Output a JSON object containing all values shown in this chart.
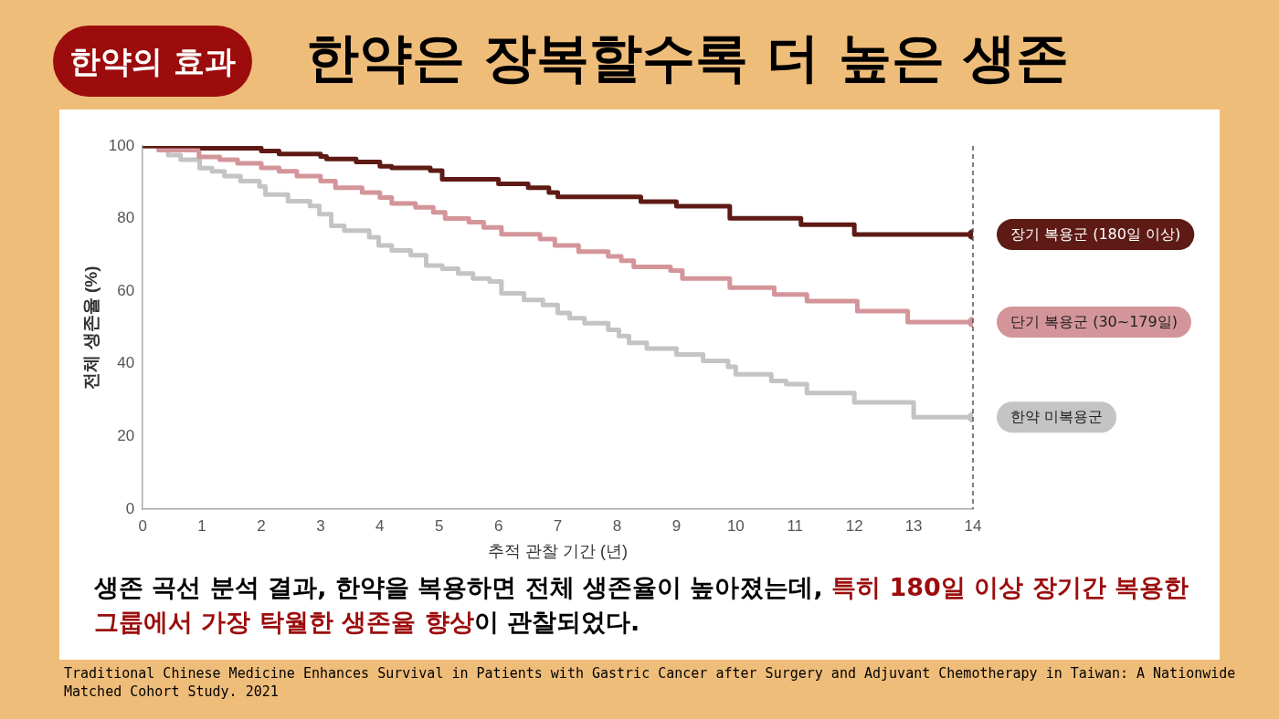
{
  "chart_data": {
    "type": "step",
    "title": "한약은 장복할수록 더 높은 생존",
    "subtitle": "한약의 효과",
    "xlabel": "추적 관찰 기간 (년)",
    "ylabel": "전체 생존율 (%)",
    "xlim": [
      0,
      14
    ],
    "xticks": [
      0,
      1,
      2,
      3,
      4,
      5,
      6,
      7,
      8,
      9,
      10,
      11,
      12,
      13,
      14
    ],
    "ylim": [
      0,
      100
    ],
    "yticks": [
      0,
      20,
      40,
      60,
      80,
      100
    ],
    "grid": false,
    "legend": "right",
    "ref_lines": [
      {
        "axis": "x",
        "value": 14,
        "line_style": "dashed",
        "color": "#555555"
      }
    ],
    "series": [
      {
        "name": "장기 복용군 (180일 이상)",
        "color": "#5e1a14",
        "x": [
          0,
          1.0,
          2.0,
          2.3,
          3.0,
          3.1,
          3.6,
          4.0,
          4.2,
          4.85,
          5.05,
          6.0,
          6.5,
          6.85,
          7.0,
          8.4,
          9.0,
          9.9,
          11.1,
          12.0,
          14
        ],
        "values": [
          100,
          99.4,
          98.6,
          97.8,
          97.1,
          96.4,
          95.6,
          94.4,
          94,
          93.2,
          90.8,
          89.6,
          88.5,
          87.2,
          86,
          84.7,
          83.4,
          80.1,
          78.3,
          75.6,
          75.6
        ]
      },
      {
        "name": "단기 복용군 (30~179일)",
        "color": "#d4959a",
        "x": [
          0,
          0.27,
          0.95,
          1.3,
          1.6,
          2.0,
          2.3,
          2.6,
          3.0,
          3.25,
          3.7,
          4.0,
          4.2,
          4.6,
          4.9,
          5.1,
          5.5,
          5.75,
          6.05,
          6.7,
          6.95,
          7.35,
          7.85,
          8.07,
          8.28,
          8.9,
          9.1,
          9.9,
          10.65,
          11.2,
          12.05,
          12.9,
          14
        ],
        "values": [
          100,
          98.9,
          97,
          96.2,
          95.2,
          94,
          93,
          91.7,
          90.3,
          88.5,
          87.2,
          85.8,
          84.2,
          83.1,
          81.7,
          80,
          79,
          77.6,
          75.7,
          74.4,
          72.6,
          70.9,
          69.6,
          68.4,
          66.7,
          65.7,
          63.5,
          61,
          59.1,
          57.3,
          54.5,
          51.5,
          51.5
        ]
      },
      {
        "name": "한약 미복용군",
        "color": "#c4c4c4",
        "x": [
          0,
          0.27,
          0.43,
          0.64,
          0.96,
          1.17,
          1.38,
          1.65,
          1.97,
          2.07,
          2.45,
          2.82,
          2.98,
          3.18,
          3.4,
          3.82,
          3.98,
          4.2,
          4.52,
          4.78,
          5.05,
          5.32,
          5.57,
          5.85,
          6.05,
          6.43,
          6.75,
          7.0,
          7.2,
          7.45,
          7.85,
          8.03,
          8.2,
          8.5,
          9.0,
          9.45,
          9.87,
          10.0,
          10.6,
          10.85,
          11.2,
          12.0,
          13.0,
          14
        ],
        "values": [
          100,
          98.9,
          97.5,
          96.2,
          93.9,
          93,
          91.7,
          90.3,
          88.9,
          86.6,
          84.8,
          83.5,
          81.2,
          78,
          76.7,
          74.9,
          72.6,
          71.2,
          69.9,
          67.1,
          66.2,
          64.9,
          63.5,
          62.7,
          59.4,
          57.6,
          56.2,
          54,
          52.6,
          51.2,
          49.4,
          47.7,
          45.8,
          44.2,
          42.6,
          40.8,
          39.2,
          37.1,
          35.3,
          34.4,
          32,
          29.4,
          25.3,
          25.3
        ]
      }
    ],
    "annotations": [
      "생존 곡선 분석 결과, 한약을 복용하면 전체 생존율이 높아졌는데, ",
      "특히 180일 이상 장기간 복용한 그룹에서 가장 탁월한 생존율 향상",
      "이 관찰되었다.",
      "Traditional Chinese Medicine Enhances Survival in Patients with Gastric Cancer after Surgery and Adjuvant Chemotherapy in Taiwan: A Nationwide Matched Cohort Study. 2021"
    ]
  }
}
